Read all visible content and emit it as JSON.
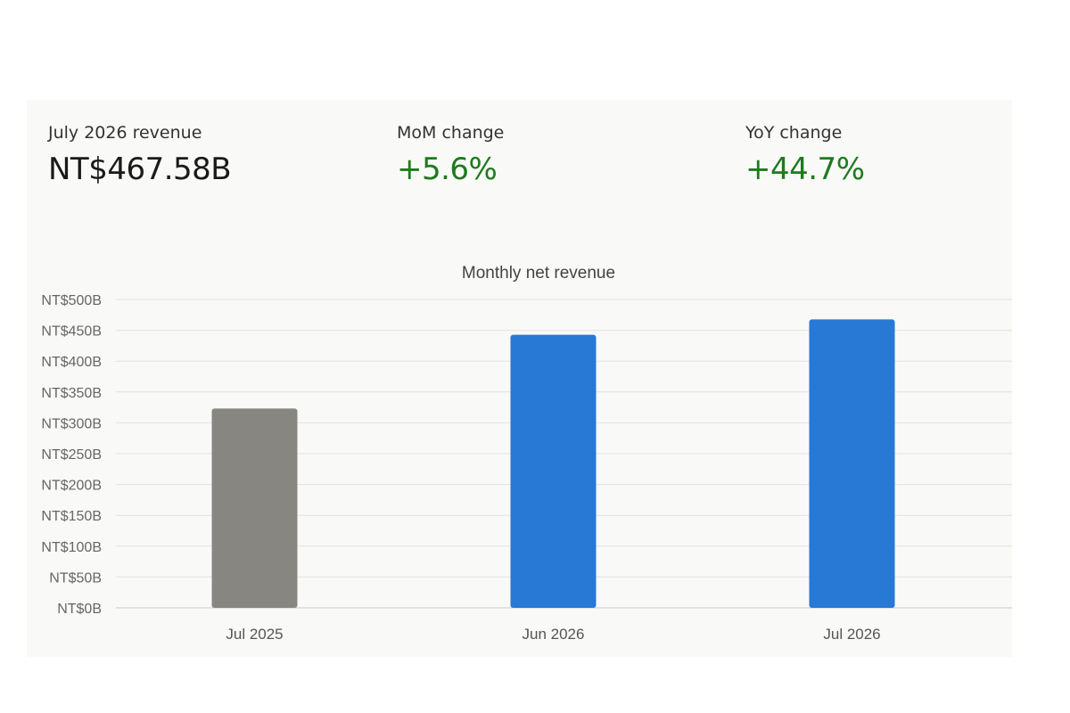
{
  "kpis": [
    {
      "label": "July 2026 revenue",
      "value": "NT$467.58B",
      "tone": "neutral"
    },
    {
      "label": "MoM change",
      "value": "+5.6%",
      "tone": "positive"
    },
    {
      "label": "YoY change",
      "value": "+44.7%",
      "tone": "positive"
    }
  ],
  "colors": {
    "positive": "#1e7a1e",
    "bar_prior_year": "#878681",
    "bar_current": "#2878d6",
    "gridline": "#e3e3e3",
    "axis": "#cccccc"
  },
  "chart_data": {
    "type": "bar",
    "title": "Monthly net revenue",
    "categories": [
      "Jul 2025",
      "Jun 2026",
      "Jul 2026"
    ],
    "values": [
      323.17,
      442.8,
      467.58
    ],
    "bar_colors": [
      "#878681",
      "#2878d6",
      "#2878d6"
    ],
    "ylim": [
      0,
      500
    ],
    "yticks": [
      0,
      50,
      100,
      150,
      200,
      250,
      300,
      350,
      400,
      450,
      500
    ],
    "ytick_labels": [
      "NT$0B",
      "NT$50B",
      "NT$100B",
      "NT$150B",
      "NT$200B",
      "NT$250B",
      "NT$300B",
      "NT$350B",
      "NT$400B",
      "NT$450B",
      "NT$500B"
    ],
    "xlabel": "",
    "ylabel": "",
    "grid": true,
    "legend": "none"
  }
}
